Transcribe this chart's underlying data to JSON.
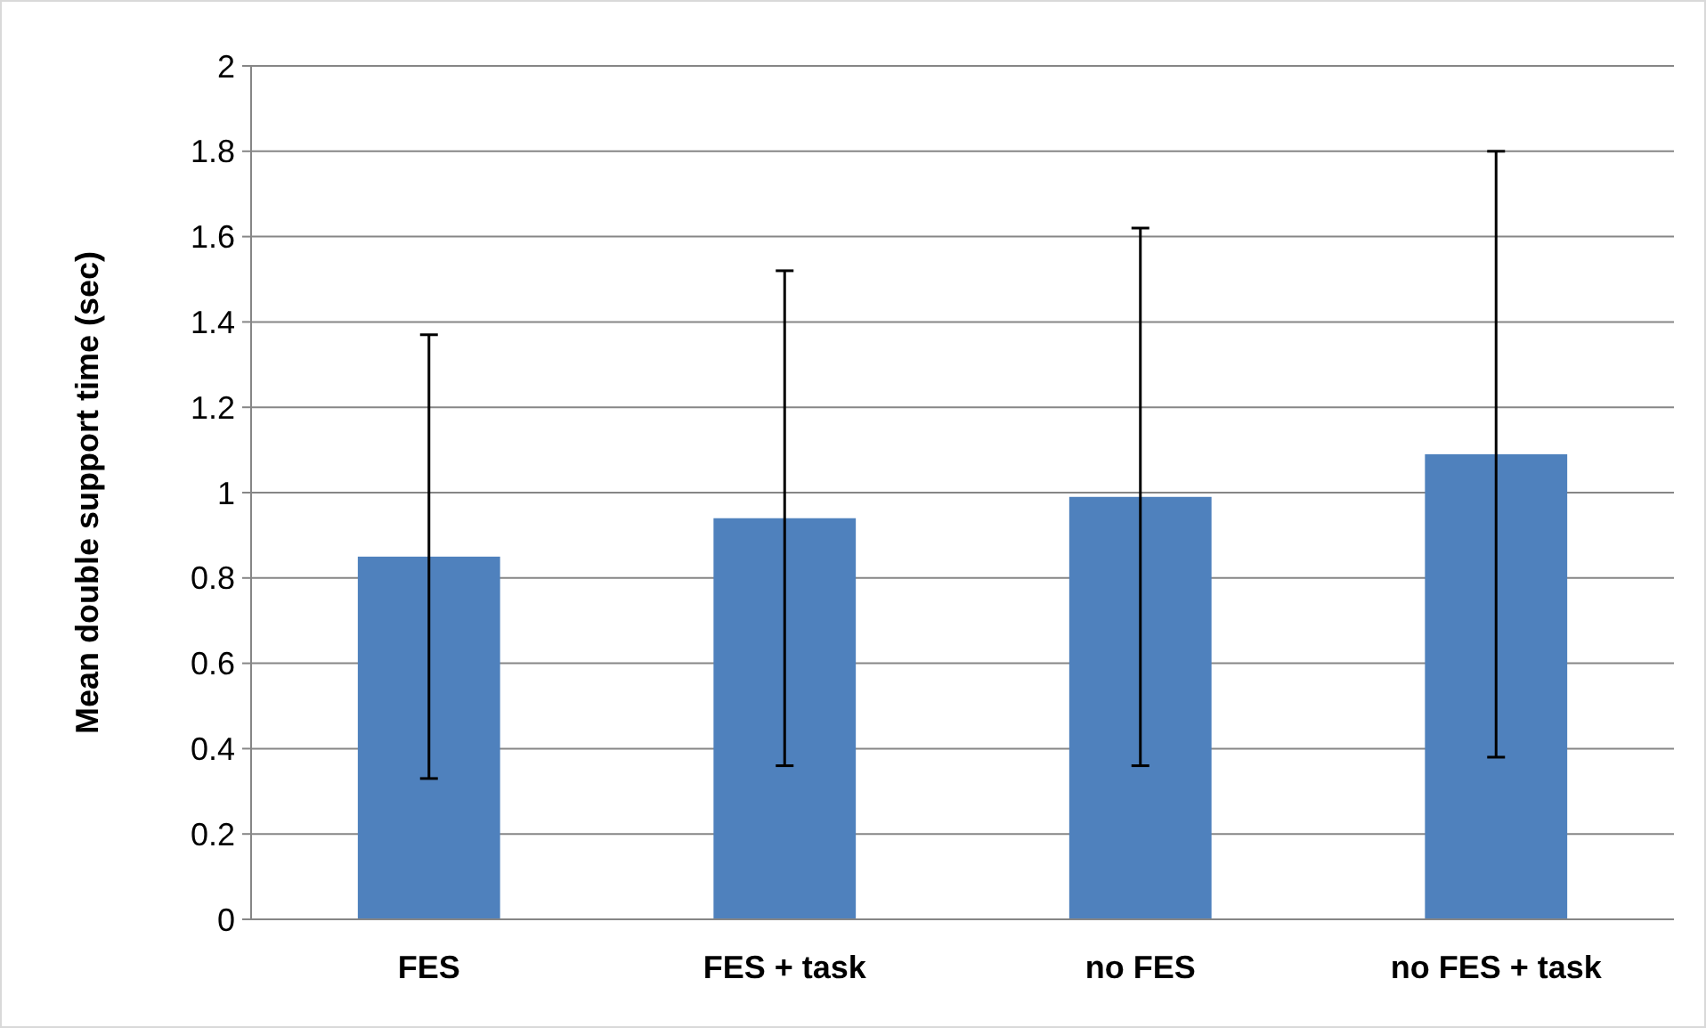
{
  "chart_data": {
    "type": "bar",
    "ylabel": "Mean double support time (sec)",
    "categories": [
      "FES",
      "FES + task",
      "no FES",
      "no FES + task"
    ],
    "values": [
      0.85,
      0.94,
      0.99,
      1.09
    ],
    "errors": [
      [
        0.33,
        1.37
      ],
      [
        0.36,
        1.52
      ],
      [
        0.36,
        1.62
      ],
      [
        0.38,
        1.8
      ]
    ],
    "color": "#4f81bd",
    "ylim": [
      0,
      2
    ],
    "yticks": [
      0,
      0.2,
      0.4,
      0.6,
      0.8,
      1,
      1.2,
      1.4,
      1.6,
      1.8,
      2
    ],
    "grid": "y"
  }
}
